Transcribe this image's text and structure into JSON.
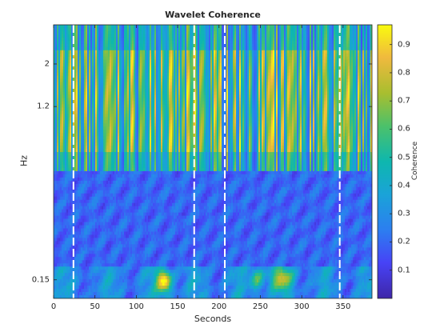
{
  "chart_data": {
    "type": "heatmap",
    "title": "Wavelet Coherence",
    "xlabel": "Seconds",
    "ylabel": "Hz",
    "colorbar_label": "Coherence",
    "xlim": [
      0,
      385
    ],
    "x_ticks": [
      0,
      50,
      100,
      150,
      200,
      250,
      300,
      350
    ],
    "x_tick_labels": [
      "0",
      "50",
      "100",
      "150",
      "200",
      "250",
      "300",
      "350"
    ],
    "y_scale": "log",
    "ylim": [
      0.12,
      3.2
    ],
    "y_ticks": [
      0.15,
      1.2,
      2
    ],
    "y_tick_labels": [
      "0.15",
      "1.2",
      "2"
    ],
    "clim": [
      0.0,
      0.97
    ],
    "c_ticks": [
      0.1,
      0.2,
      0.3,
      0.4,
      0.5,
      0.6,
      0.7,
      0.8,
      0.9
    ],
    "c_tick_labels": [
      "0.1",
      "0.2",
      "0.3",
      "0.4",
      "0.5",
      "0.6",
      "0.7",
      "0.8",
      "0.9"
    ],
    "colormap": "parula",
    "boundary_lines_seconds": [
      24,
      170,
      207,
      346
    ],
    "description_bands": [
      {
        "freq_range_hz": [
          0.55,
          3.2
        ],
        "coherence_level": "high, vertical stripes 0.2-0.95"
      },
      {
        "freq_range_hz": [
          0.12,
          0.55
        ],
        "coherence_level": "low 0.05-0.3 with patches up to 0.9 near 130 s"
      }
    ]
  }
}
